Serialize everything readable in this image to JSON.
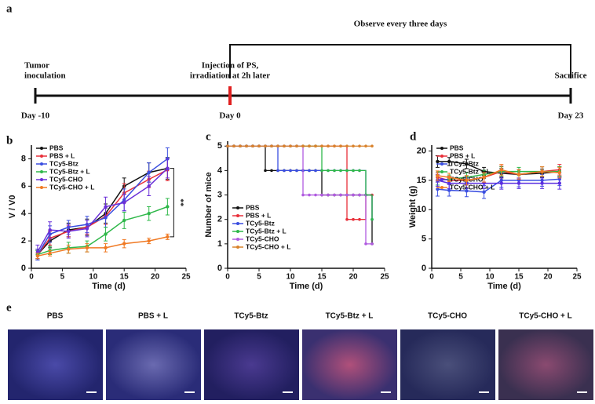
{
  "panel_letters": [
    "a",
    "b",
    "c",
    "d",
    "e"
  ],
  "timeline": {
    "events": [
      {
        "label_lines": [
          "Tumor",
          "inoculation"
        ],
        "day": "Day -10"
      },
      {
        "label_lines": [
          "Injection of PS,",
          "irradiation at 2h later"
        ],
        "day": "Day 0"
      },
      {
        "label_lines": [
          "Sacrifice"
        ],
        "day": "Day 23"
      }
    ],
    "bracket_label": "Observe every three days"
  },
  "chart_data": [
    {
      "type": "line",
      "xlabel": "Time (d)",
      "ylabel": "V / V0",
      "xlim": [
        0,
        25
      ],
      "xticks": [
        0,
        5,
        10,
        15,
        20,
        25
      ],
      "ylim": [
        0,
        9
      ],
      "yticks": [
        0,
        2,
        4,
        6,
        8
      ],
      "annotation": "**",
      "x": [
        1,
        3,
        6,
        9,
        12,
        15,
        19,
        22
      ],
      "series": [
        {
          "name": "PBS",
          "color": "#111111",
          "values": [
            1,
            2,
            2.8,
            3,
            4,
            6,
            7,
            7.3
          ],
          "errors": [
            0.4,
            0.5,
            0.5,
            0.6,
            0.7,
            0.6,
            0.7,
            0.8
          ]
        },
        {
          "name": "PBS + L",
          "color": "#e8303a",
          "values": [
            1,
            2.2,
            2.7,
            3,
            3.8,
            5.5,
            6.5,
            7.2
          ],
          "errors": [
            0.3,
            0.5,
            0.4,
            0.5,
            0.6,
            0.7,
            0.6,
            0.8
          ]
        },
        {
          "name": "TCy5-Btz",
          "color": "#3a4ee0",
          "values": [
            1,
            2.5,
            3,
            3.2,
            3.7,
            5,
            7,
            8
          ],
          "errors": [
            0.4,
            0.6,
            0.5,
            0.6,
            0.7,
            0.8,
            0.7,
            0.8
          ]
        },
        {
          "name": "TCy5-Btz + L",
          "color": "#2fb84a",
          "values": [
            1,
            1.3,
            1.5,
            1.6,
            2.5,
            3.5,
            4,
            4.5
          ],
          "errors": [
            0.3,
            0.3,
            0.4,
            0.4,
            0.5,
            0.6,
            0.5,
            0.6
          ]
        },
        {
          "name": "TCy5-CHO",
          "color": "#6a2fd8",
          "values": [
            1.2,
            2.8,
            2.7,
            2.9,
            4.5,
            4.8,
            6,
            7.3
          ],
          "errors": [
            0.5,
            0.6,
            0.5,
            0.6,
            0.7,
            0.6,
            0.7,
            0.7
          ]
        },
        {
          "name": "TCy5-CHO + L",
          "color": "#f07a24",
          "values": [
            0.9,
            1.1,
            1.4,
            1.5,
            1.5,
            1.8,
            2,
            2.3
          ],
          "errors": [
            0.2,
            0.2,
            0.3,
            0.3,
            0.3,
            0.3,
            0.2,
            0.2
          ]
        }
      ]
    },
    {
      "type": "line",
      "step": true,
      "xlabel": "Time (d)",
      "ylabel": "Number of mice",
      "xlim": [
        0,
        25
      ],
      "xticks": [
        0,
        5,
        10,
        15,
        20,
        25
      ],
      "ylim": [
        0,
        5.2
      ],
      "yticks": [
        0,
        1,
        2,
        3,
        4,
        5
      ],
      "x": [
        0,
        1,
        2,
        3,
        4,
        5,
        6,
        7,
        8,
        9,
        10,
        11,
        12,
        13,
        14,
        15,
        16,
        17,
        18,
        19,
        20,
        21,
        22,
        23
      ],
      "series": [
        {
          "name": "PBS",
          "color": "#111111",
          "values": [
            5,
            5,
            5,
            5,
            5,
            5,
            4,
            4,
            4,
            4,
            4,
            4,
            4,
            4,
            4,
            3,
            3,
            3,
            3,
            3,
            3,
            3,
            3,
            1
          ]
        },
        {
          "name": "PBS + L",
          "color": "#e8303a",
          "values": [
            5,
            5,
            5,
            5,
            5,
            5,
            5,
            5,
            5,
            5,
            5,
            5,
            5,
            5,
            5,
            5,
            5,
            5,
            5,
            2,
            2,
            2,
            3,
            3
          ]
        },
        {
          "name": "TCy5-Btz",
          "color": "#3a4ee0",
          "values": [
            5,
            5,
            5,
            5,
            5,
            5,
            5,
            5,
            4,
            4,
            4,
            4,
            4,
            4,
            4,
            4,
            4,
            4,
            4,
            4,
            4,
            4,
            3,
            2
          ]
        },
        {
          "name": "TCy5-Btz + L",
          "color": "#2fb84a",
          "values": [
            5,
            5,
            5,
            5,
            5,
            5,
            5,
            5,
            5,
            5,
            5,
            5,
            5,
            5,
            5,
            4,
            4,
            4,
            4,
            4,
            4,
            4,
            3,
            2
          ]
        },
        {
          "name": "TCy5-CHO",
          "color": "#b05ae0",
          "values": [
            5,
            5,
            5,
            5,
            5,
            5,
            5,
            5,
            5,
            5,
            5,
            5,
            3,
            3,
            3,
            3,
            3,
            3,
            3,
            3,
            3,
            3,
            1,
            1
          ]
        },
        {
          "name": "TCy5-CHO + L",
          "color": "#d9822b",
          "values": [
            5,
            5,
            5,
            5,
            5,
            5,
            5,
            5,
            5,
            5,
            5,
            5,
            5,
            5,
            5,
            5,
            5,
            5,
            5,
            5,
            5,
            5,
            5,
            5
          ]
        }
      ]
    },
    {
      "type": "line",
      "xlabel": "Time (d)",
      "ylabel": "Weight (g)",
      "xlim": [
        0,
        25
      ],
      "xticks": [
        0,
        5,
        10,
        15,
        20,
        25
      ],
      "ylim": [
        0,
        21
      ],
      "yticks": [
        0,
        5,
        10,
        15,
        20
      ],
      "x": [
        1,
        3,
        6,
        9,
        12,
        15,
        19,
        22
      ],
      "series": [
        {
          "name": "PBS",
          "color": "#111111",
          "values": [
            18.2,
            18.2,
            17.8,
            16.5,
            16.2,
            16,
            16.2,
            16.5
          ],
          "errors": [
            1,
            0.7,
            0.8,
            0.7,
            0.8,
            0.8,
            0.7,
            0.8
          ]
        },
        {
          "name": "PBS + L",
          "color": "#e8303a",
          "values": [
            15.5,
            15,
            15,
            15.5,
            16.5,
            16,
            16.5,
            16.8
          ],
          "errors": [
            0.8,
            0.7,
            0.8,
            0.8,
            0.9,
            0.8,
            0.8,
            0.9
          ]
        },
        {
          "name": "TCy5-Btz",
          "color": "#3a4ee0",
          "values": [
            13.5,
            13.3,
            13.2,
            13,
            15,
            15,
            15,
            15.2
          ],
          "errors": [
            1.2,
            1,
            1,
            1.1,
            1.2,
            1.1,
            1,
            1.1
          ]
        },
        {
          "name": "TCy5-Btz + L",
          "color": "#2fb84a",
          "values": [
            15,
            15.2,
            15.5,
            16,
            16.5,
            16.5,
            16.5,
            16.5
          ],
          "errors": [
            0.8,
            0.7,
            0.8,
            0.7,
            0.8,
            0.7,
            0.8,
            0.8
          ]
        },
        {
          "name": "TCy5-CHO",
          "color": "#5a2ee0",
          "values": [
            15,
            14.5,
            14.5,
            14.5,
            14.5,
            14.5,
            14.5,
            14.5
          ],
          "errors": [
            1,
            0.9,
            0.9,
            0.9,
            1,
            0.9,
            0.9,
            1
          ]
        },
        {
          "name": "TCy5-CHO + L",
          "color": "#f07a24",
          "values": [
            15.8,
            15.5,
            15,
            15.5,
            16.8,
            16,
            16.5,
            16.3
          ],
          "errors": [
            0.8,
            0.7,
            0.8,
            0.8,
            0.9,
            0.8,
            0.8,
            0.9
          ]
        }
      ]
    }
  ],
  "images": {
    "labels": [
      "PBS",
      "PBS + L",
      "TCy5-Btz",
      "TCy5-Btz + L",
      "TCy5-CHO",
      "TCy5-CHO + L"
    ]
  }
}
